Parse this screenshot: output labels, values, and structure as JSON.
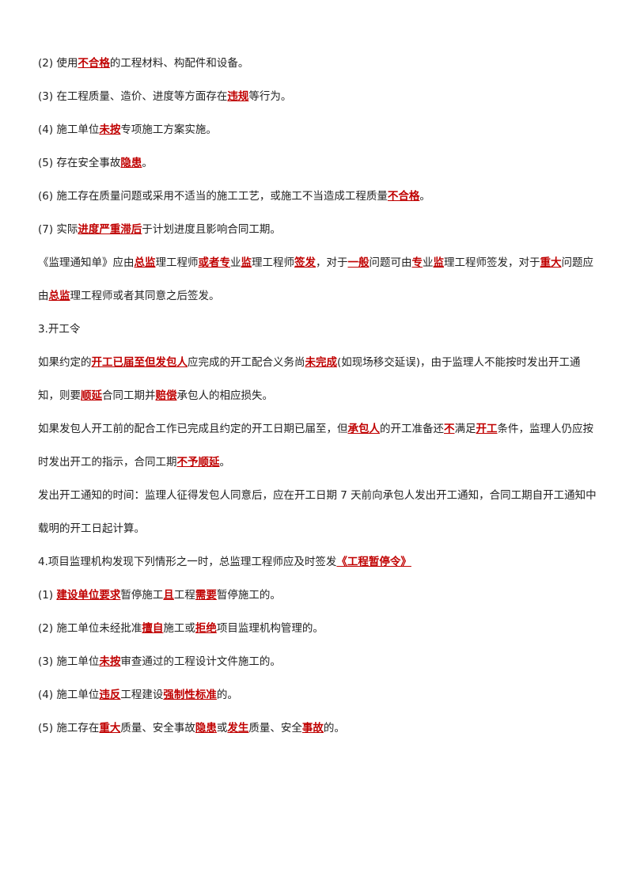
{
  "paragraphs": [
    {
      "runs": [
        {
          "text": "(2) 使用"
        },
        {
          "text": "不合格",
          "emphasis": true
        },
        {
          "text": "的工程材料、构配件和设备。"
        }
      ]
    },
    {
      "runs": [
        {
          "text": "(3) 在工程质量、造价、进度等方面存在"
        },
        {
          "text": "违规",
          "emphasis": true
        },
        {
          "text": "等行为。"
        }
      ]
    },
    {
      "runs": [
        {
          "text": "(4) 施工单位"
        },
        {
          "text": "未按",
          "emphasis": true
        },
        {
          "text": "专项施工方案实施。"
        }
      ]
    },
    {
      "runs": [
        {
          "text": "(5) 存在安全事故"
        },
        {
          "text": "隐患",
          "emphasis": true
        },
        {
          "text": "。"
        }
      ]
    },
    {
      "runs": [
        {
          "text": "(6) 施工存在质量问题或采用不适当的施工工艺，或施工不当造成工程质量"
        },
        {
          "text": "不合格",
          "emphasis": true
        },
        {
          "text": "。"
        }
      ]
    },
    {
      "runs": [
        {
          "text": "(7) 实际"
        },
        {
          "text": "进度严重滞后",
          "emphasis": true
        },
        {
          "text": "于计划进度且影响合同工期。"
        }
      ]
    },
    {
      "runs": [
        {
          "text": "《监理通知单》应由"
        },
        {
          "text": "总监",
          "emphasis": true
        },
        {
          "text": "理工程师"
        },
        {
          "text": "或者专",
          "emphasis": true
        },
        {
          "text": "业"
        },
        {
          "text": "监",
          "emphasis": true
        },
        {
          "text": "理工程师"
        },
        {
          "text": "签发",
          "emphasis": true
        },
        {
          "text": "，对于"
        },
        {
          "text": "一般",
          "emphasis": true
        },
        {
          "text": "问题可由"
        },
        {
          "text": "专",
          "emphasis": true
        },
        {
          "text": "业"
        },
        {
          "text": "监",
          "emphasis": true
        },
        {
          "text": "理工程师签发，对于"
        },
        {
          "text": "重大",
          "emphasis": true
        },
        {
          "text": "问题应由"
        },
        {
          "text": "总监",
          "emphasis": true
        },
        {
          "text": "理工程师或者其同意之后签发。"
        }
      ]
    },
    {
      "runs": [
        {
          "text": "3.开工令"
        }
      ]
    },
    {
      "runs": [
        {
          "text": "如果约定的"
        },
        {
          "text": "开工已届至但发包人",
          "emphasis": true
        },
        {
          "text": "应完成的开工配合义务尚"
        },
        {
          "text": "未完成",
          "emphasis": true
        },
        {
          "text": "(如现场移交延误)，由于监理人不能按时发出开工通知，则要"
        },
        {
          "text": "顺延",
          "emphasis": true
        },
        {
          "text": "合同工期并"
        },
        {
          "text": "赔偿",
          "emphasis": true
        },
        {
          "text": "承包人的相应损失。"
        }
      ]
    },
    {
      "runs": [
        {
          "text": "如果发包人开工前的配合工作已完成且约定的开工日期已届至，但"
        },
        {
          "text": "承包人",
          "emphasis": true
        },
        {
          "text": "的开工准备还"
        },
        {
          "text": "不",
          "emphasis": true
        },
        {
          "text": "满足"
        },
        {
          "text": "开工",
          "emphasis": true
        },
        {
          "text": "条件，监理人仍应按时发出开工的指示，合同工期"
        },
        {
          "text": "不予顺延",
          "emphasis": true
        },
        {
          "text": "。"
        }
      ]
    },
    {
      "runs": [
        {
          "text": "发出开工通知的时间：监理人征得发包人同意后，应在开工日期 7 天前向承包人发出开工通知，合同工期自开工通知中载明的开工日起计算。"
        }
      ]
    },
    {
      "runs": [
        {
          "text": "4.项目监理机构发现下列情形之一时，总监理工程师应及时签发"
        },
        {
          "text": "《工程暂停令》",
          "emphasis": true
        }
      ]
    },
    {
      "runs": [
        {
          "text": "(1) "
        },
        {
          "text": "建设单位要求",
          "emphasis": true
        },
        {
          "text": "暂停施工"
        },
        {
          "text": "且",
          "emphasis": true
        },
        {
          "text": "工程"
        },
        {
          "text": "需要",
          "emphasis": true
        },
        {
          "text": "暂停施工的。"
        }
      ]
    },
    {
      "runs": [
        {
          "text": "(2) 施工单位未经批准"
        },
        {
          "text": "擅自",
          "emphasis": true
        },
        {
          "text": "施工或"
        },
        {
          "text": "拒绝",
          "emphasis": true
        },
        {
          "text": "项目监理机构管理的。"
        }
      ]
    },
    {
      "runs": [
        {
          "text": "(3) 施工单位"
        },
        {
          "text": "未按",
          "emphasis": true
        },
        {
          "text": "审查通过的工程设计文件施工的。"
        }
      ]
    },
    {
      "runs": [
        {
          "text": "(4) 施工单位"
        },
        {
          "text": "违反",
          "emphasis": true
        },
        {
          "text": "工程建设"
        },
        {
          "text": "强制性标准",
          "emphasis": true
        },
        {
          "text": "的。"
        }
      ]
    },
    {
      "runs": [
        {
          "text": "(5) 施工存在"
        },
        {
          "text": "重大",
          "emphasis": true
        },
        {
          "text": "质量、安全事故"
        },
        {
          "text": "隐患",
          "emphasis": true
        },
        {
          "text": "或"
        },
        {
          "text": "发生",
          "emphasis": true
        },
        {
          "text": "质量、安全"
        },
        {
          "text": "事故",
          "emphasis": true
        },
        {
          "text": "的。"
        }
      ]
    }
  ]
}
